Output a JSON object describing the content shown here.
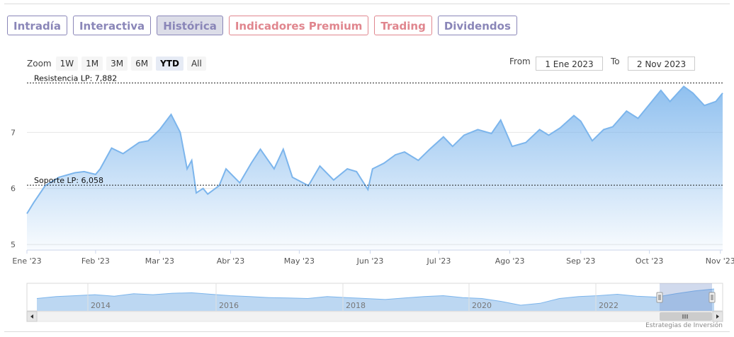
{
  "tabs": [
    {
      "label": "Intradía",
      "kind": "normal"
    },
    {
      "label": "Interactiva",
      "kind": "normal"
    },
    {
      "label": "Histórica",
      "kind": "active"
    },
    {
      "label": "Indicadores Premium",
      "kind": "premium"
    },
    {
      "label": "Trading",
      "kind": "premium"
    },
    {
      "label": "Dividendos",
      "kind": "normal"
    }
  ],
  "zoom": {
    "label": "Zoom",
    "buttons": [
      "1W",
      "1M",
      "3M",
      "6M",
      "YTD",
      "All"
    ],
    "selected": "YTD"
  },
  "range": {
    "from_label": "From",
    "from_value": "1 Ene 2023",
    "to_label": "To",
    "to_value": "2 Nov 2023"
  },
  "colors": {
    "line": "#7cb5ec",
    "tab": "#8a86b8",
    "premium": "#e0868e"
  },
  "chart_data": {
    "type": "area",
    "y_ticks": [
      "5",
      "6",
      "7"
    ],
    "ylim": [
      4.9,
      7.95
    ],
    "x_ticks": [
      "Ene '23",
      "Feb '23",
      "Mar '23",
      "Abr '23",
      "May '23",
      "Jun '23",
      "Jul '23",
      "Ago '23",
      "Sep '23",
      "Oct '23",
      "Nov '23"
    ],
    "x": [
      "2023-01-02",
      "2023-01-05",
      "2023-01-10",
      "2023-01-16",
      "2023-01-23",
      "2023-01-27",
      "2023-02-01",
      "2023-02-03",
      "2023-02-08",
      "2023-02-13",
      "2023-02-20",
      "2023-02-24",
      "2023-03-01",
      "2023-03-06",
      "2023-03-10",
      "2023-03-13",
      "2023-03-15",
      "2023-03-17",
      "2023-03-20",
      "2023-03-22",
      "2023-03-27",
      "2023-03-30",
      "2023-04-05",
      "2023-04-10",
      "2023-04-14",
      "2023-04-20",
      "2023-04-24",
      "2023-04-28",
      "2023-05-05",
      "2023-05-10",
      "2023-05-16",
      "2023-05-22",
      "2023-05-26",
      "2023-05-31",
      "2023-06-02",
      "2023-06-07",
      "2023-06-12",
      "2023-06-16",
      "2023-06-22",
      "2023-06-27",
      "2023-07-03",
      "2023-07-07",
      "2023-07-12",
      "2023-07-18",
      "2023-07-24",
      "2023-07-28",
      "2023-08-02",
      "2023-08-08",
      "2023-08-14",
      "2023-08-18",
      "2023-08-23",
      "2023-08-29",
      "2023-09-01",
      "2023-09-06",
      "2023-09-11",
      "2023-09-15",
      "2023-09-21",
      "2023-09-26",
      "2023-10-02",
      "2023-10-06",
      "2023-10-10",
      "2023-10-16",
      "2023-10-20",
      "2023-10-25",
      "2023-10-30",
      "2023-11-02"
    ],
    "y": [
      5.55,
      5.75,
      6.05,
      6.2,
      6.28,
      6.3,
      6.25,
      6.35,
      6.72,
      6.62,
      6.82,
      6.85,
      7.05,
      7.32,
      7.0,
      6.35,
      6.5,
      5.92,
      6.0,
      5.9,
      6.05,
      6.35,
      6.1,
      6.45,
      6.7,
      6.35,
      6.7,
      6.2,
      6.05,
      6.4,
      6.15,
      6.35,
      6.3,
      5.98,
      6.35,
      6.45,
      6.6,
      6.65,
      6.5,
      6.7,
      6.92,
      6.75,
      6.95,
      7.05,
      6.98,
      7.22,
      6.75,
      6.82,
      7.05,
      6.95,
      7.08,
      7.3,
      7.2,
      6.85,
      7.05,
      7.1,
      7.38,
      7.25,
      7.55,
      7.75,
      7.55,
      7.82,
      7.7,
      7.48,
      7.55,
      7.7
    ],
    "plot_lines": [
      {
        "label": "Resistencia LP: 7,882",
        "value": 7.882
      },
      {
        "label": "Soporte LP: 6,058",
        "value": 6.058
      }
    ],
    "navigator": {
      "year_labels": [
        "2014",
        "2016",
        "2018",
        "2020",
        "2022"
      ],
      "values": [
        6.3,
        6.5,
        6.6,
        6.7,
        6.55,
        6.8,
        6.7,
        6.85,
        6.9,
        6.75,
        6.6,
        6.5,
        6.4,
        6.35,
        6.3,
        6.5,
        6.4,
        6.3,
        6.2,
        6.35,
        6.5,
        6.6,
        6.4,
        6.3,
        6.0,
        5.6,
        5.8,
        6.3,
        6.5,
        6.6,
        6.75,
        6.55,
        6.45,
        6.8,
        7.1,
        7.3
      ]
    },
    "credit": "Estrategias de Inversión"
  }
}
